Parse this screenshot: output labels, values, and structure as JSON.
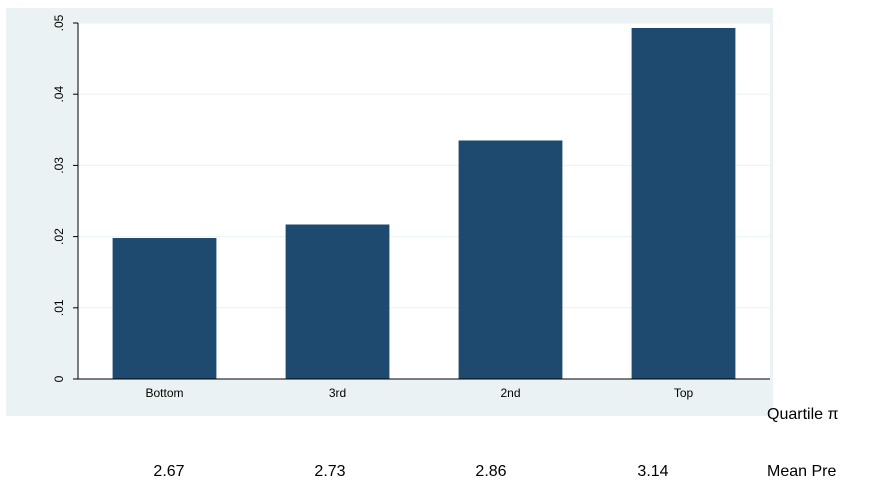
{
  "chart_data": {
    "type": "bar",
    "categories": [
      "Bottom",
      "3rd",
      "2nd",
      "Top"
    ],
    "values": [
      0.0198,
      0.0217,
      0.0335,
      0.0493
    ],
    "ylim": [
      0,
      0.05
    ],
    "yticks": [
      0,
      0.01,
      0.02,
      0.03,
      0.04,
      0.05
    ],
    "ytick_labels": [
      "0",
      ".01",
      ".02",
      ".03",
      ".04",
      ".05"
    ],
    "bar_color": "#1f4a70",
    "background_color": "#eaf2f3",
    "grid": true,
    "legend": "none"
  },
  "quartile_label": "Quartile π",
  "mean_label": "Mean Pre",
  "mean_values": [
    "2.67",
    "2.73",
    "2.86",
    "3.14"
  ]
}
